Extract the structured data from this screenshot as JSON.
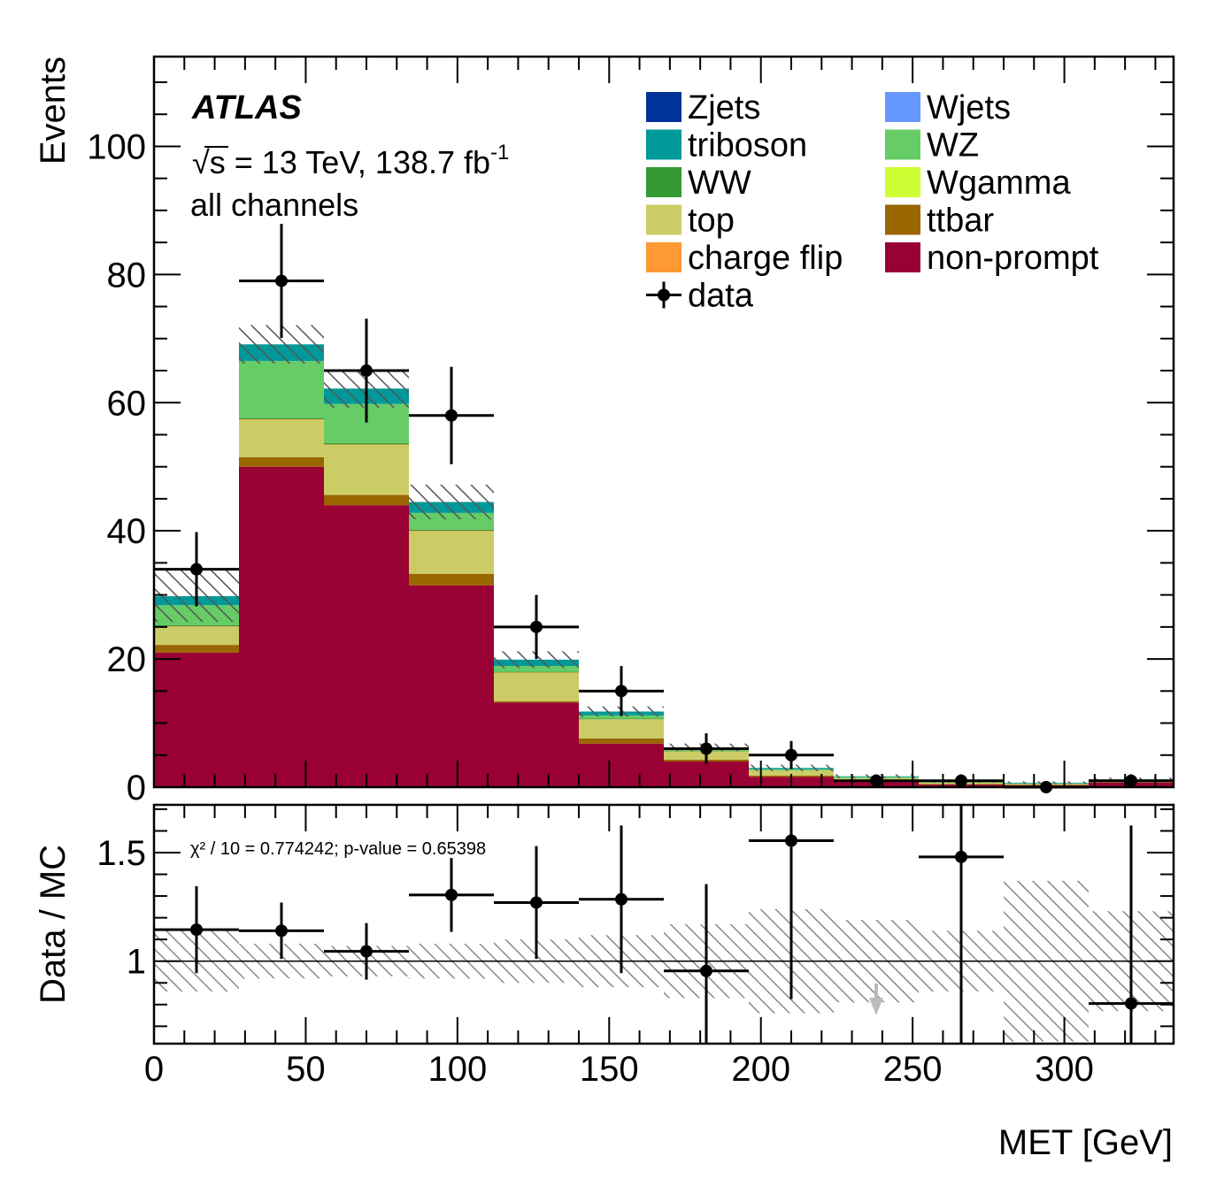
{
  "chart_data": {
    "type": "bar",
    "title": "",
    "experiment_label": "ATLAS",
    "energy_label": "s = 13 TeV, 138.7 fb",
    "lumi_exponent": "-1",
    "energy_sqrt_symbol": "√",
    "channel_label": "all channels",
    "xlabel": "MET [GeV]",
    "ylabel_top": "Events",
    "ylabel_bottom": "Data / MC",
    "xlim": [
      0,
      336
    ],
    "ylim_top": [
      0,
      114
    ],
    "ylim_bottom": [
      0.62,
      1.72
    ],
    "x_ticks": [
      "0",
      "50",
      "100",
      "150",
      "200",
      "250",
      "300"
    ],
    "y_ticks_top": [
      "0",
      "20",
      "40",
      "60",
      "80",
      "100"
    ],
    "y_ticks_bottom": [
      "1",
      "1.5"
    ],
    "bin_edges": [
      0,
      28,
      56,
      84,
      112,
      140,
      168,
      196,
      224,
      252,
      280,
      308,
      336
    ],
    "series": [
      {
        "name": "non-prompt",
        "color": "#990033",
        "values": [
          21,
          50,
          44,
          31.5,
          13.2,
          6.8,
          4.0,
          1.6,
          1.0,
          0.4,
          0.3,
          0.7
        ]
      },
      {
        "name": "ttbar",
        "color": "#996600",
        "values": [
          1.2,
          1.5,
          1.6,
          1.8,
          0.2,
          0.8,
          0.3,
          0.2,
          0.1,
          0.1,
          0.1,
          0.1
        ]
      },
      {
        "name": "top",
        "color": "#cccc66",
        "values": [
          2.8,
          5.8,
          7.8,
          6.6,
          4.4,
          3.0,
          1.3,
          0.8,
          0.3,
          0.2,
          0.1,
          0.2
        ]
      },
      {
        "name": "charge flip",
        "color": "#ff9933",
        "values": [
          0.1,
          0.1,
          0.1,
          0.1,
          0.1,
          0.0,
          0.0,
          0.0,
          0.0,
          0.0,
          0.0,
          0.0
        ]
      },
      {
        "name": "WW",
        "color": "#339933",
        "values": [
          0.2,
          0.2,
          0.2,
          0.2,
          0.1,
          0.1,
          0.1,
          0.0,
          0.0,
          0.0,
          0.0,
          0.0
        ]
      },
      {
        "name": "Wgamma",
        "color": "#ccff33",
        "values": [
          0.0,
          0.0,
          0.0,
          0.0,
          0.0,
          0.0,
          0.0,
          0.0,
          0.0,
          0.0,
          0.0,
          0.0
        ]
      },
      {
        "name": "WZ",
        "color": "#66cc66",
        "values": [
          3.1,
          8.9,
          6.1,
          2.6,
          0.9,
          0.5,
          0.2,
          0.2,
          0.2,
          0.1,
          0.1,
          0.1
        ]
      },
      {
        "name": "triboson",
        "color": "#009999",
        "values": [
          1.4,
          2.6,
          2.4,
          1.7,
          1.0,
          0.6,
          0.3,
          0.2,
          0.1,
          0.1,
          0.1,
          0.1
        ]
      },
      {
        "name": "Wjets",
        "color": "#6699ff",
        "values": [
          0.0,
          0.0,
          0.0,
          0.0,
          0.0,
          0.0,
          0.0,
          0.0,
          0.0,
          0.0,
          0.0,
          0.0
        ]
      },
      {
        "name": "Zjets",
        "color": "#003399",
        "values": [
          0.0,
          0.0,
          0.0,
          0.0,
          0.0,
          0.0,
          0.0,
          0.0,
          0.0,
          0.0,
          0.0,
          0.0
        ]
      }
    ],
    "mc_uncertainty": [
      4.0,
      3.0,
      3.0,
      2.7,
      1.3,
      0.8,
      0.6,
      0.5,
      0.3,
      0.2,
      0.2,
      0.3
    ],
    "data": {
      "name": "data",
      "x": [
        14,
        42,
        70,
        98,
        126,
        154,
        182,
        210,
        238,
        266,
        294,
        322
      ],
      "y": [
        34,
        79,
        65,
        58,
        25,
        15,
        6,
        5,
        1,
        1,
        0,
        1
      ],
      "yerr": [
        5.8,
        8.9,
        8.1,
        7.6,
        5.0,
        3.9,
        2.4,
        2.2,
        1.0,
        1.0,
        0.0,
        1.0
      ]
    },
    "ratio": {
      "x": [
        14,
        42,
        70,
        98,
        126,
        154,
        182,
        210,
        266,
        322
      ],
      "y": [
        1.145,
        1.14,
        1.045,
        1.305,
        1.27,
        1.285,
        0.955,
        1.555,
        1.48,
        0.805
      ],
      "yerr": [
        0.2,
        0.13,
        0.13,
        0.17,
        0.26,
        0.34,
        0.4,
        0.73,
        0.99,
        0.82
      ],
      "mc_band": [
        0.14,
        0.08,
        0.07,
        0.08,
        0.1,
        0.12,
        0.17,
        0.24,
        0.19,
        0.14,
        0.37,
        0.23
      ],
      "offscale_down_x": [
        238
      ],
      "reference_line": 1.0
    },
    "fit_text": "χ² / 10 = 0.774242; p-value = 0.65398",
    "legend": {
      "columns": 2,
      "placement": "top-right",
      "entries": [
        "Zjets",
        "Wjets",
        "triboson",
        "WZ",
        "WW",
        "Wgamma",
        "top",
        "ttbar",
        "charge flip",
        "non-prompt",
        "data"
      ]
    }
  }
}
